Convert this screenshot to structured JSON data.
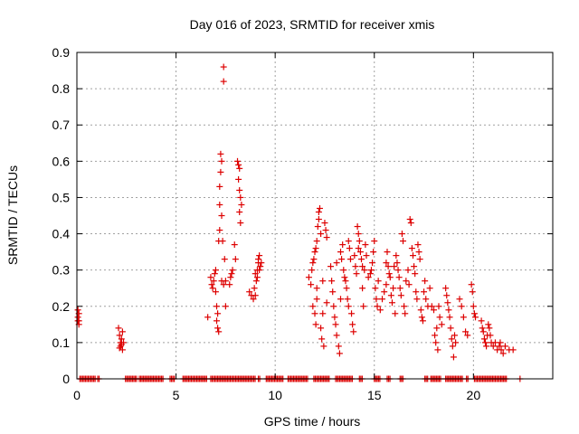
{
  "chart_data": {
    "type": "scatter",
    "title": "Day 016 of 2023, SRMTID for receiver xmis",
    "xlabel": "GPS time / hours",
    "ylabel": "SRMTID / TECUs",
    "xlim": [
      0,
      24
    ],
    "ylim": [
      0,
      0.9
    ],
    "xticks": [
      0,
      5,
      10,
      15,
      20
    ],
    "yticks": [
      0,
      0.1,
      0.2,
      0.3,
      0.4,
      0.5,
      0.6,
      0.7,
      0.8,
      0.9
    ],
    "grid": true,
    "marker": "+",
    "color": "#dd0000",
    "series": [
      {
        "name": "xmis",
        "points": [
          [
            0.05,
            0.19
          ],
          [
            0.05,
            0.17
          ],
          [
            0.05,
            0.16
          ],
          [
            0.1,
            0.18
          ],
          [
            0.1,
            0.16
          ],
          [
            0.1,
            0.15
          ],
          [
            2.1,
            0.14
          ],
          [
            2.15,
            0.12
          ],
          [
            2.2,
            0.1
          ],
          [
            2.2,
            0.09
          ],
          [
            2.25,
            0.11
          ],
          [
            2.3,
            0.08
          ],
          [
            2.3,
            0.13
          ],
          [
            2.35,
            0.1
          ],
          [
            2.15,
            0.085
          ],
          [
            2.25,
            0.095
          ],
          [
            6.6,
            0.17
          ],
          [
            6.75,
            0.28
          ],
          [
            6.8,
            0.26
          ],
          [
            6.85,
            0.25
          ],
          [
            6.9,
            0.27
          ],
          [
            6.95,
            0.29
          ],
          [
            7.0,
            0.3
          ],
          [
            7.0,
            0.24
          ],
          [
            7.05,
            0.2
          ],
          [
            7.05,
            0.16
          ],
          [
            7.1,
            0.18
          ],
          [
            7.1,
            0.14
          ],
          [
            7.15,
            0.13
          ],
          [
            7.15,
            0.38
          ],
          [
            7.2,
            0.41
          ],
          [
            7.2,
            0.48
          ],
          [
            7.2,
            0.53
          ],
          [
            7.25,
            0.57
          ],
          [
            7.25,
            0.62
          ],
          [
            7.3,
            0.6
          ],
          [
            7.3,
            0.45
          ],
          [
            7.35,
            0.38
          ],
          [
            7.3,
            0.27
          ],
          [
            7.4,
            0.26
          ],
          [
            7.5,
            0.2
          ],
          [
            7.45,
            0.33
          ],
          [
            7.5,
            0.27
          ],
          [
            7.4,
            0.86
          ],
          [
            7.4,
            0.82
          ],
          [
            7.7,
            0.26
          ],
          [
            7.75,
            0.28
          ],
          [
            7.8,
            0.29
          ],
          [
            7.85,
            0.3
          ],
          [
            7.95,
            0.37
          ],
          [
            8.0,
            0.33
          ],
          [
            8.1,
            0.6
          ],
          [
            8.15,
            0.59
          ],
          [
            8.2,
            0.58
          ],
          [
            8.15,
            0.55
          ],
          [
            8.2,
            0.52
          ],
          [
            8.25,
            0.5
          ],
          [
            8.3,
            0.48
          ],
          [
            8.2,
            0.46
          ],
          [
            8.25,
            0.43
          ],
          [
            8.7,
            0.24
          ],
          [
            8.8,
            0.23
          ],
          [
            8.9,
            0.22
          ],
          [
            8.95,
            0.25
          ],
          [
            9.0,
            0.23
          ],
          [
            9.05,
            0.27
          ],
          [
            9.0,
            0.29
          ],
          [
            9.1,
            0.3
          ],
          [
            9.15,
            0.32
          ],
          [
            9.2,
            0.34
          ],
          [
            9.15,
            0.33
          ],
          [
            9.25,
            0.31
          ],
          [
            9.3,
            0.32
          ],
          [
            9.1,
            0.28
          ],
          [
            9.2,
            0.3
          ],
          [
            11.7,
            0.28
          ],
          [
            11.8,
            0.26
          ],
          [
            11.85,
            0.3
          ],
          [
            11.9,
            0.32
          ],
          [
            11.95,
            0.33
          ],
          [
            12.0,
            0.35
          ],
          [
            12.05,
            0.36
          ],
          [
            12.1,
            0.38
          ],
          [
            12.1,
            0.22
          ],
          [
            11.9,
            0.2
          ],
          [
            12.0,
            0.18
          ],
          [
            12.05,
            0.15
          ],
          [
            12.1,
            0.25
          ],
          [
            12.15,
            0.42
          ],
          [
            12.2,
            0.46
          ],
          [
            12.25,
            0.47
          ],
          [
            12.2,
            0.44
          ],
          [
            12.3,
            0.4
          ],
          [
            12.3,
            0.14
          ],
          [
            12.35,
            0.11
          ],
          [
            12.4,
            0.18
          ],
          [
            12.4,
            0.27
          ],
          [
            12.5,
            0.43
          ],
          [
            12.55,
            0.41
          ],
          [
            12.6,
            0.39
          ],
          [
            12.6,
            0.21
          ],
          [
            12.45,
            0.09
          ],
          [
            12.8,
            0.31
          ],
          [
            12.85,
            0.27
          ],
          [
            12.9,
            0.24
          ],
          [
            12.95,
            0.2
          ],
          [
            13.0,
            0.17
          ],
          [
            13.05,
            0.15
          ],
          [
            13.1,
            0.12
          ],
          [
            13.1,
            0.32
          ],
          [
            13.2,
            0.09
          ],
          [
            13.25,
            0.07
          ],
          [
            13.3,
            0.22
          ],
          [
            13.3,
            0.35
          ],
          [
            13.35,
            0.33
          ],
          [
            13.4,
            0.37
          ],
          [
            13.45,
            0.3
          ],
          [
            13.5,
            0.28
          ],
          [
            13.55,
            0.27
          ],
          [
            13.6,
            0.25
          ],
          [
            13.65,
            0.22
          ],
          [
            13.7,
            0.2
          ],
          [
            13.7,
            0.38
          ],
          [
            13.75,
            0.36
          ],
          [
            13.8,
            0.33
          ],
          [
            13.85,
            0.18
          ],
          [
            13.9,
            0.15
          ],
          [
            13.95,
            0.13
          ],
          [
            14.0,
            0.34
          ],
          [
            14.05,
            0.31
          ],
          [
            14.1,
            0.29
          ],
          [
            14.15,
            0.42
          ],
          [
            14.2,
            0.4
          ],
          [
            14.2,
            0.36
          ],
          [
            14.25,
            0.38
          ],
          [
            14.3,
            0.35
          ],
          [
            14.35,
            0.33
          ],
          [
            14.4,
            0.31
          ],
          [
            14.4,
            0.25
          ],
          [
            14.45,
            0.2
          ],
          [
            14.5,
            0.3
          ],
          [
            14.55,
            0.37
          ],
          [
            14.6,
            0.34
          ],
          [
            14.7,
            0.28
          ],
          [
            14.8,
            0.29
          ],
          [
            14.85,
            0.3
          ],
          [
            14.9,
            0.32
          ],
          [
            14.95,
            0.35
          ],
          [
            15.0,
            0.38
          ],
          [
            15.05,
            0.25
          ],
          [
            15.1,
            0.22
          ],
          [
            15.15,
            0.2
          ],
          [
            15.2,
            0.27
          ],
          [
            15.3,
            0.19
          ],
          [
            15.4,
            0.22
          ],
          [
            15.5,
            0.24
          ],
          [
            15.6,
            0.26
          ],
          [
            15.6,
            0.32
          ],
          [
            15.65,
            0.35
          ],
          [
            15.7,
            0.31
          ],
          [
            15.75,
            0.29
          ],
          [
            15.8,
            0.28
          ],
          [
            15.85,
            0.23
          ],
          [
            15.9,
            0.21
          ],
          [
            15.95,
            0.25
          ],
          [
            16.0,
            0.31
          ],
          [
            16.05,
            0.18
          ],
          [
            16.1,
            0.34
          ],
          [
            16.15,
            0.32
          ],
          [
            16.2,
            0.3
          ],
          [
            16.25,
            0.28
          ],
          [
            16.3,
            0.25
          ],
          [
            16.35,
            0.23
          ],
          [
            16.4,
            0.4
          ],
          [
            16.45,
            0.38
          ],
          [
            16.5,
            0.2
          ],
          [
            16.55,
            0.18
          ],
          [
            16.6,
            0.27
          ],
          [
            16.7,
            0.3
          ],
          [
            16.75,
            0.26
          ],
          [
            16.8,
            0.44
          ],
          [
            16.85,
            0.43
          ],
          [
            16.9,
            0.36
          ],
          [
            16.95,
            0.34
          ],
          [
            17.0,
            0.31
          ],
          [
            17.05,
            0.29
          ],
          [
            17.1,
            0.24
          ],
          [
            17.15,
            0.22
          ],
          [
            17.2,
            0.37
          ],
          [
            17.25,
            0.35
          ],
          [
            17.3,
            0.33
          ],
          [
            17.35,
            0.19
          ],
          [
            17.4,
            0.17
          ],
          [
            17.45,
            0.16
          ],
          [
            17.5,
            0.24
          ],
          [
            17.55,
            0.27
          ],
          [
            17.6,
            0.22
          ],
          [
            17.7,
            0.2
          ],
          [
            17.8,
            0.25
          ],
          [
            17.9,
            0.2
          ],
          [
            18.0,
            0.19
          ],
          [
            18.05,
            0.12
          ],
          [
            18.1,
            0.1
          ],
          [
            18.15,
            0.14
          ],
          [
            18.2,
            0.08
          ],
          [
            18.25,
            0.2
          ],
          [
            18.3,
            0.17
          ],
          [
            18.4,
            0.15
          ],
          [
            18.6,
            0.25
          ],
          [
            18.65,
            0.23
          ],
          [
            18.7,
            0.21
          ],
          [
            18.75,
            0.19
          ],
          [
            18.8,
            0.17
          ],
          [
            18.85,
            0.14
          ],
          [
            18.9,
            0.11
          ],
          [
            18.95,
            0.09
          ],
          [
            19.0,
            0.06
          ],
          [
            19.05,
            0.12
          ],
          [
            19.1,
            0.1
          ],
          [
            19.3,
            0.22
          ],
          [
            19.4,
            0.2
          ],
          [
            19.5,
            0.17
          ],
          [
            19.6,
            0.13
          ],
          [
            19.7,
            0.12
          ],
          [
            19.9,
            0.26
          ],
          [
            19.95,
            0.24
          ],
          [
            20.0,
            0.2
          ],
          [
            20.05,
            0.18
          ],
          [
            20.1,
            0.17
          ],
          [
            20.4,
            0.16
          ],
          [
            20.45,
            0.14
          ],
          [
            20.5,
            0.13
          ],
          [
            20.55,
            0.11
          ],
          [
            20.6,
            0.1
          ],
          [
            20.65,
            0.09
          ],
          [
            20.7,
            0.12
          ],
          [
            20.75,
            0.15
          ],
          [
            20.8,
            0.14
          ],
          [
            20.85,
            0.12
          ],
          [
            20.9,
            0.1
          ],
          [
            21.0,
            0.09
          ],
          [
            21.1,
            0.1
          ],
          [
            21.2,
            0.08
          ],
          [
            21.3,
            0.09
          ],
          [
            21.35,
            0.1
          ],
          [
            21.4,
            0.08
          ],
          [
            21.5,
            0.07
          ],
          [
            21.6,
            0.09
          ],
          [
            21.8,
            0.08
          ],
          [
            22.0,
            0.08
          ]
        ],
        "zero_segments": [
          [
            0.15,
            0.95
          ],
          [
            1.05,
            1.15
          ],
          [
            2.45,
            3.05
          ],
          [
            3.15,
            4.35
          ],
          [
            4.7,
            4.95
          ],
          [
            5.35,
            6.55
          ],
          [
            6.75,
            9.05
          ],
          [
            9.15,
            9.25
          ],
          [
            9.55,
            10.45
          ],
          [
            10.65,
            11.65
          ],
          [
            11.95,
            12.75
          ],
          [
            13.05,
            13.95
          ],
          [
            14.25,
            14.45
          ],
          [
            15.0,
            15.3
          ],
          [
            15.65,
            15.85
          ],
          [
            16.3,
            16.45
          ],
          [
            17.55,
            17.7
          ],
          [
            17.85,
            18.35
          ],
          [
            18.6,
            19.45
          ],
          [
            19.65,
            19.75
          ],
          [
            20.05,
            21.7
          ],
          [
            22.35,
            22.4
          ]
        ]
      }
    ]
  }
}
